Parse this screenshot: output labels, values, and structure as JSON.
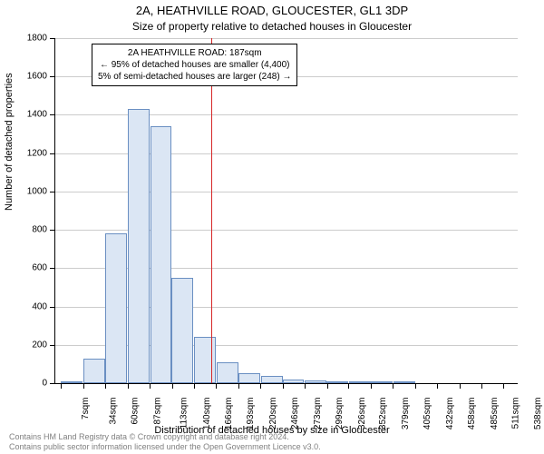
{
  "chart": {
    "type": "histogram",
    "title_main": "2A, HEATHVILLE ROAD, GLOUCESTER, GL1 3DP",
    "title_sub": "Size of property relative to detached houses in Gloucester",
    "y_axis_label": "Number of detached properties",
    "x_axis_label": "Distribution of detached houses by size in Gloucester",
    "background_color": "#ffffff",
    "grid_color": "#cccccc",
    "bar_fill": "#dbe6f4",
    "bar_border": "#6a8fc2",
    "ref_line_color": "#d62728",
    "axis_color": "#000000",
    "title_fontsize": 13,
    "subtitle_fontsize": 12,
    "axis_label_fontsize": 11,
    "tick_fontsize": 10,
    "y_min": 0,
    "y_max": 1800,
    "y_ticks": [
      0,
      200,
      400,
      600,
      800,
      1000,
      1200,
      1400,
      1600,
      1800
    ],
    "x_min": 0,
    "x_max": 555,
    "x_ticks": [
      7,
      34,
      60,
      87,
      113,
      140,
      166,
      193,
      220,
      246,
      273,
      299,
      326,
      352,
      379,
      405,
      432,
      458,
      485,
      511,
      538
    ],
    "x_tick_suffix": "sqm",
    "bar_bin_width": 26.5,
    "bars": [
      {
        "x_center": 20,
        "value": 10
      },
      {
        "x_center": 47,
        "value": 130
      },
      {
        "x_center": 73,
        "value": 780
      },
      {
        "x_center": 100,
        "value": 1430
      },
      {
        "x_center": 127,
        "value": 1340
      },
      {
        "x_center": 153,
        "value": 550
      },
      {
        "x_center": 180,
        "value": 240
      },
      {
        "x_center": 207,
        "value": 110
      },
      {
        "x_center": 233,
        "value": 50
      },
      {
        "x_center": 260,
        "value": 40
      },
      {
        "x_center": 286,
        "value": 20
      },
      {
        "x_center": 313,
        "value": 15
      },
      {
        "x_center": 339,
        "value": 10
      },
      {
        "x_center": 366,
        "value": 5
      },
      {
        "x_center": 392,
        "value": 5
      },
      {
        "x_center": 419,
        "value": 2
      },
      {
        "x_center": 445,
        "value": 0
      },
      {
        "x_center": 472,
        "value": 0
      },
      {
        "x_center": 498,
        "value": 0
      },
      {
        "x_center": 525,
        "value": 0
      },
      {
        "x_center": 551,
        "value": 0
      }
    ],
    "reference_line_x": 187,
    "annotation": {
      "line1": "2A HEATHVILLE ROAD: 187sqm",
      "line2": "← 95% of detached houses are smaller (4,400)",
      "line3": "5% of semi-detached houses are larger (248) →",
      "border_color": "#000000",
      "bg_color": "#ffffff",
      "fontsize": 10
    },
    "footer_line1": "Contains HM Land Registry data © Crown copyright and database right 2024.",
    "footer_line2": "Contains public sector information licensed under the Open Government Licence v3.0.",
    "footer_color": "#808080"
  }
}
